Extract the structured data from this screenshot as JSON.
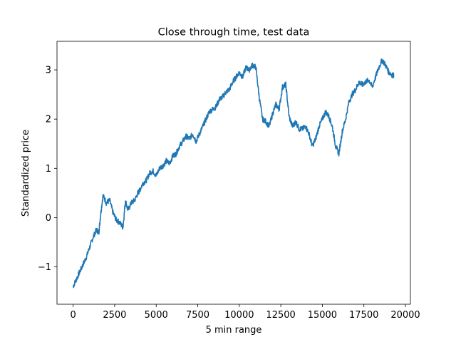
{
  "chart_data": {
    "type": "line",
    "title": "Close through time, test data",
    "xlabel": "5 min range",
    "ylabel": "Standardized price",
    "xlim": [
      -970,
      20300
    ],
    "ylim": [
      -1.76,
      3.58
    ],
    "xticks": [
      0,
      2500,
      5000,
      7500,
      10000,
      12500,
      15000,
      17500,
      20000
    ],
    "xtick_labels": [
      "0",
      "2500",
      "5000",
      "7500",
      "10000",
      "12500",
      "15000",
      "17500",
      "20000"
    ],
    "yticks": [
      -1,
      0,
      1,
      2,
      3
    ],
    "ytick_labels": [
      "−1",
      "0",
      "1",
      "2",
      "3"
    ],
    "grid": false,
    "series": [
      {
        "color": "#1f77b4",
        "x": [
          0,
          200,
          400,
          600,
          800,
          1000,
          1200,
          1400,
          1550,
          1650,
          1800,
          2000,
          2200,
          2400,
          2600,
          2800,
          3000,
          3150,
          3300,
          3500,
          3700,
          3900,
          4000,
          4200,
          4400,
          4600,
          4800,
          5000,
          5200,
          5400,
          5600,
          5800,
          6000,
          6200,
          6400,
          6600,
          6800,
          7000,
          7200,
          7400,
          7600,
          7800,
          8000,
          8200,
          8400,
          8600,
          8800,
          9000,
          9200,
          9400,
          9600,
          9800,
          10000,
          10200,
          10400,
          10600,
          10800,
          11000,
          11200,
          11400,
          11600,
          11800,
          12000,
          12200,
          12400,
          12600,
          12800,
          13000,
          13200,
          13400,
          13600,
          13800,
          14000,
          14200,
          14400,
          14600,
          14800,
          15000,
          15200,
          15400,
          15600,
          15800,
          16000,
          16200,
          16400,
          16600,
          16800,
          17000,
          17200,
          17400,
          17600,
          17800,
          18000,
          18200,
          18400,
          18600,
          18800,
          19000,
          19200,
          19300
        ],
        "y": [
          -1.4,
          -1.25,
          -1.1,
          -0.95,
          -0.8,
          -0.6,
          -0.4,
          -0.25,
          -0.3,
          0.05,
          0.45,
          0.3,
          0.35,
          0.1,
          -0.05,
          -0.1,
          -0.2,
          0.35,
          0.15,
          0.3,
          0.35,
          0.5,
          0.55,
          0.7,
          0.75,
          0.9,
          0.95,
          0.85,
          1.0,
          1.05,
          1.15,
          1.1,
          1.25,
          1.3,
          1.45,
          1.55,
          1.65,
          1.6,
          1.7,
          1.55,
          1.7,
          1.85,
          2.0,
          2.15,
          2.2,
          2.25,
          2.4,
          2.45,
          2.55,
          2.6,
          2.75,
          2.85,
          2.95,
          2.85,
          3.05,
          3.0,
          3.1,
          3.05,
          2.45,
          2.0,
          1.95,
          1.85,
          2.1,
          2.3,
          2.2,
          2.65,
          2.7,
          2.05,
          1.85,
          1.95,
          1.8,
          1.8,
          1.85,
          1.7,
          1.45,
          1.6,
          1.85,
          2.0,
          2.15,
          2.05,
          1.85,
          1.45,
          1.3,
          1.75,
          2.0,
          2.35,
          2.5,
          2.6,
          2.75,
          2.7,
          2.75,
          2.8,
          2.65,
          2.85,
          3.05,
          3.2,
          3.1,
          2.95,
          2.9,
          2.88
        ]
      }
    ]
  }
}
